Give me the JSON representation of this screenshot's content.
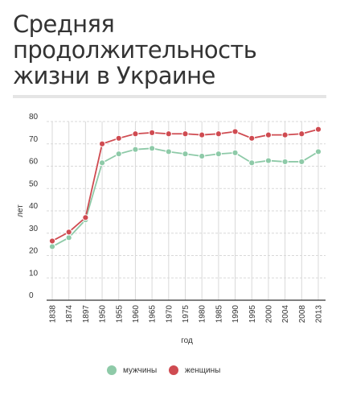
{
  "title": "Средняя\nпродолжительность\nжизни в Украине",
  "colors": {
    "men": "#8ecaa8",
    "women": "#cf4b51",
    "grid": "#d9d9d9",
    "axis": "#333333",
    "title_rule": "#e5e5e5"
  },
  "chart_data": {
    "type": "line",
    "title": "",
    "xlabel": "год",
    "ylabel": "лет",
    "categories": [
      "1838",
      "1874",
      "1897",
      "1950",
      "1955",
      "1960",
      "1965",
      "1970",
      "1975",
      "1980",
      "1985",
      "1990",
      "1995",
      "2000",
      "2004",
      "2008",
      "2013"
    ],
    "ylim": [
      0,
      80
    ],
    "yticks": [
      0,
      10,
      20,
      30,
      40,
      50,
      60,
      70,
      80
    ],
    "grid": true,
    "legend_position": "bottom-center",
    "series": [
      {
        "name": "мужчины",
        "color": "#8ecaa8",
        "values": [
          24,
          28,
          36,
          61.5,
          65.5,
          67.5,
          68,
          66.5,
          65.5,
          64.5,
          65.5,
          66,
          61.5,
          62.5,
          62,
          62,
          66.5
        ]
      },
      {
        "name": "женщины",
        "color": "#cf4b51",
        "values": [
          26.5,
          30.5,
          37,
          70,
          72.5,
          74.5,
          75,
          74.5,
          74.5,
          74,
          74.5,
          75.5,
          72.5,
          74,
          74,
          74.5,
          76.5
        ]
      }
    ]
  }
}
